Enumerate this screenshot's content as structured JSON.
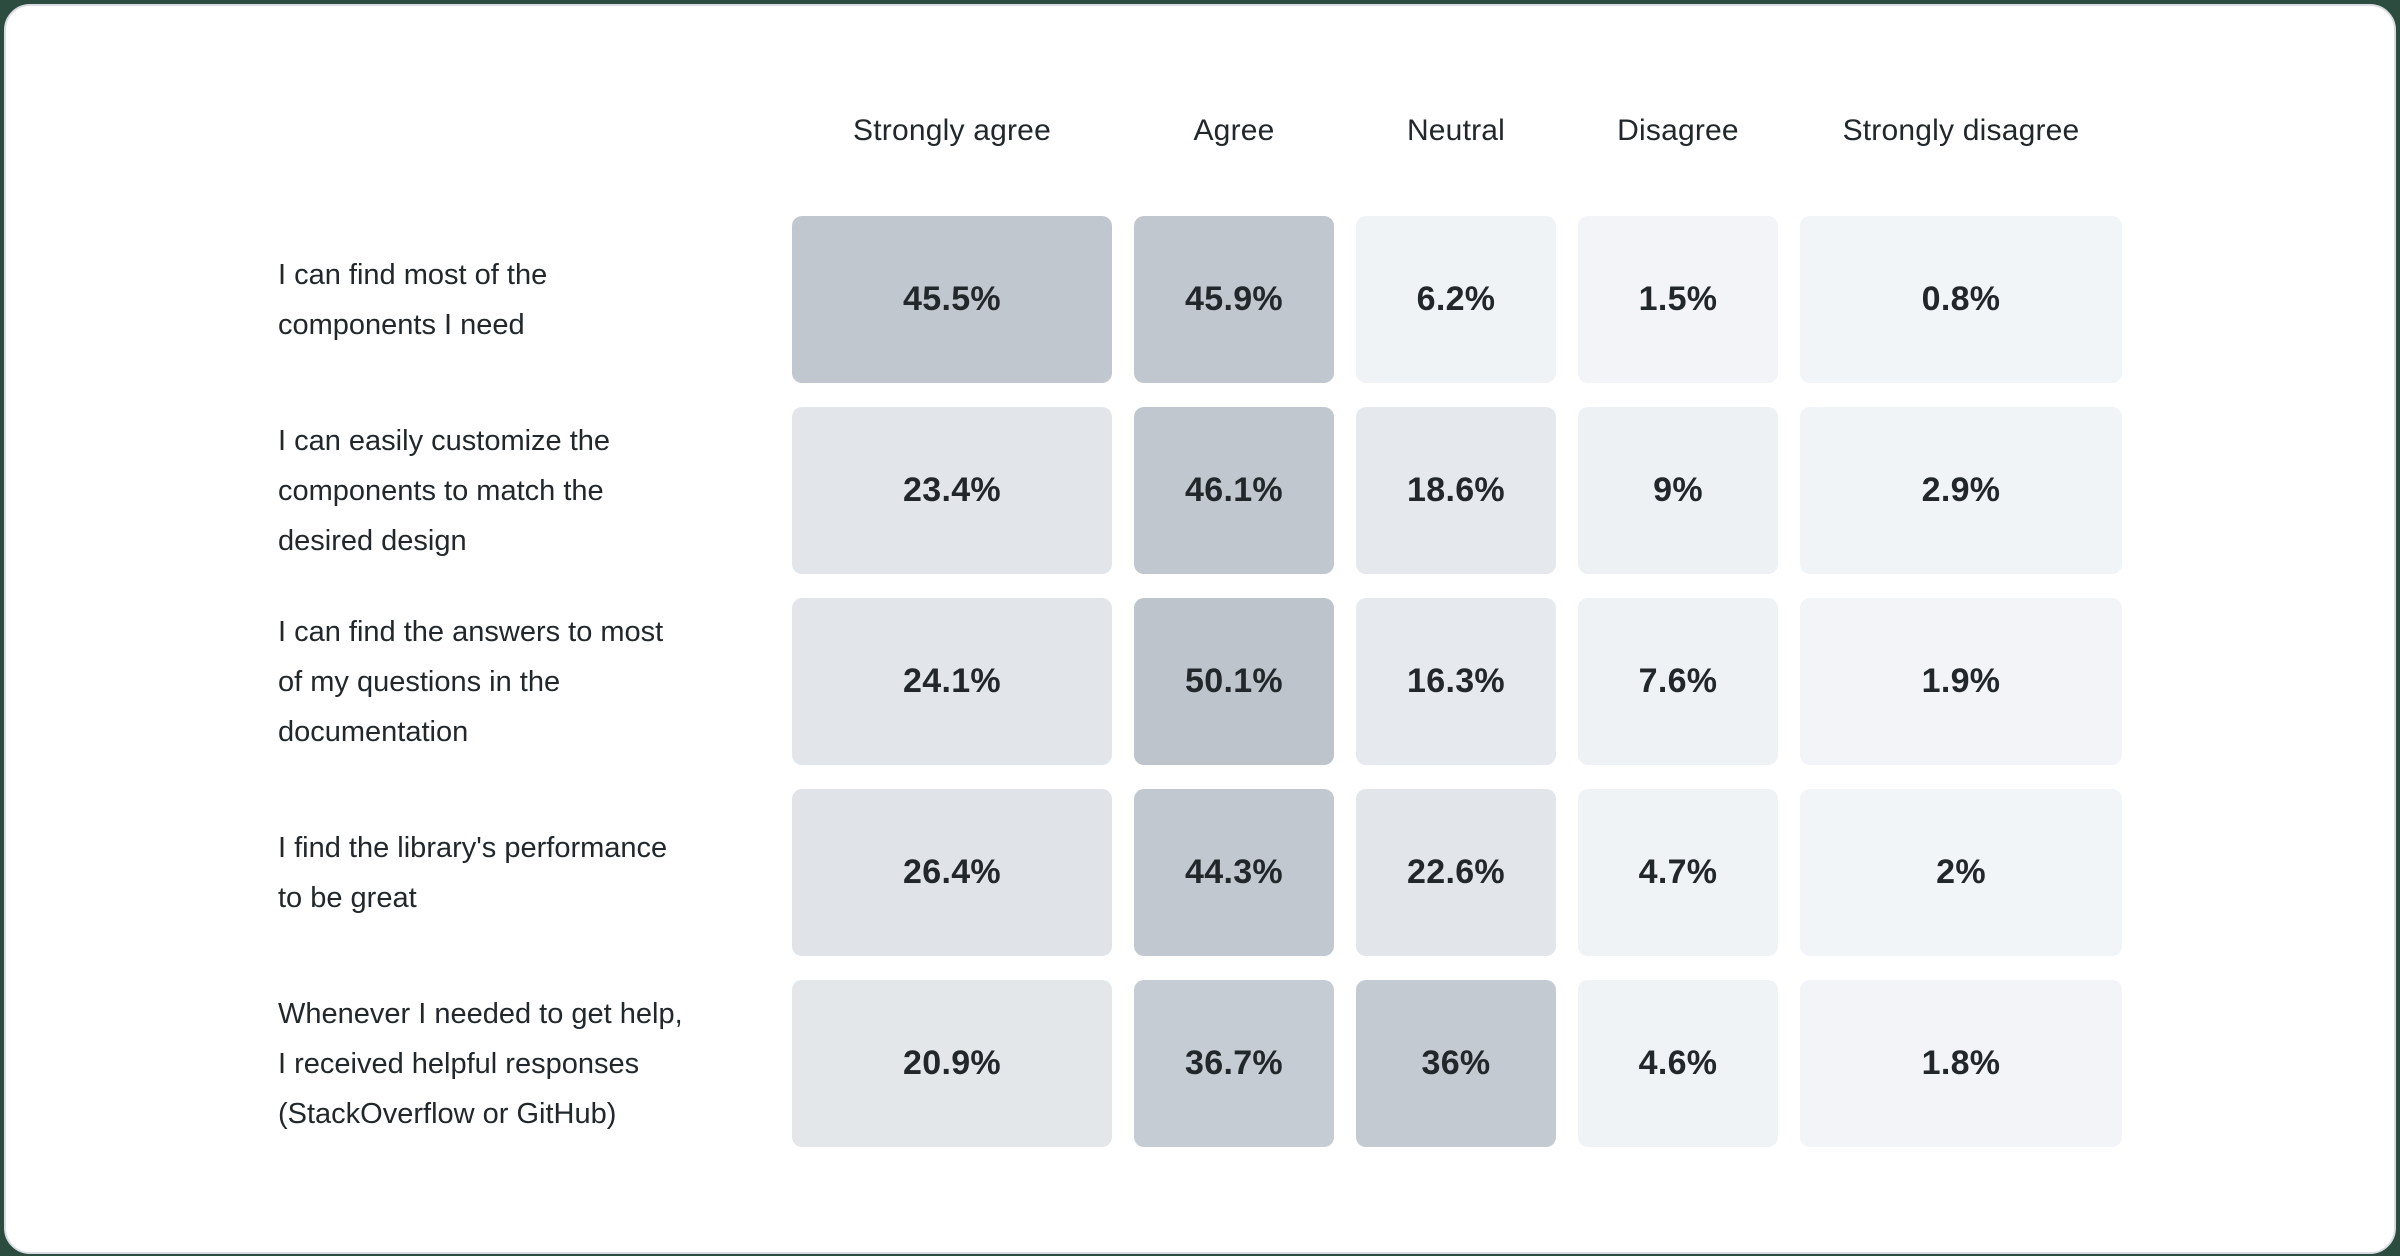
{
  "page": {
    "background_color": "#2b4c3f",
    "card_background": "#ffffff",
    "card_border_color": "#d9dde2",
    "text_color": "#21272a"
  },
  "chart_data": {
    "type": "heatmap",
    "legend_position": "none",
    "value_unit": "percent",
    "columns": [
      "Strongly agree",
      "Agree",
      "Neutral",
      "Disagree",
      "Strongly disagree"
    ],
    "rows": [
      {
        "question": "I can find most of the\ncomponents I need",
        "values": [
          45.5,
          45.9,
          6.2,
          1.5,
          0.8
        ],
        "labels": [
          "45.5%",
          "45.9%",
          "6.2%",
          "1.5%",
          "0.8%"
        ],
        "colors": [
          "#c1c7ce",
          "#c0c7ce",
          "#f0f3f6",
          "#f2f4f7",
          "#f2f5f8"
        ]
      },
      {
        "question": "I can easily customize the\ncomponents to match the\ndesired design",
        "values": [
          23.4,
          46.1,
          18.6,
          9,
          2.9
        ],
        "labels": [
          "23.4%",
          "46.1%",
          "18.6%",
          "9%",
          "2.9%"
        ],
        "colors": [
          "#e2e6ea",
          "#c0c7ce",
          "#e5e8ec",
          "#eef1f4",
          "#f1f4f7"
        ]
      },
      {
        "question": "I can find the answers to most\nof my questions in the\ndocumentation",
        "values": [
          24.1,
          50.1,
          16.3,
          7.6,
          1.9
        ],
        "labels": [
          "24.1%",
          "50.1%",
          "16.3%",
          "7.6%",
          "1.9%"
        ],
        "colors": [
          "#e2e6ea",
          "#bdc4cc",
          "#e6e9ed",
          "#eff2f5",
          "#f2f4f7"
        ]
      },
      {
        "question": "I find the library's performance\nto be great",
        "values": [
          26.4,
          44.3,
          22.6,
          4.7,
          2
        ],
        "labels": [
          "26.4%",
          "44.3%",
          "22.6%",
          "4.7%",
          "2%"
        ],
        "colors": [
          "#e0e4e9",
          "#c1c8cf",
          "#e2e6ea",
          "#f0f3f6",
          "#f2f5f8"
        ]
      },
      {
        "question": "Whenever I needed to get help,\nI received helpful responses\n(StackOverflow or GitHub)",
        "values": [
          20.9,
          36.7,
          36,
          4.6,
          1.8
        ],
        "labels": [
          "20.9%",
          "36.7%",
          "36%",
          "4.6%",
          "1.8%"
        ],
        "colors": [
          "#e3e7ea",
          "#c6ccd3",
          "#c4cad1",
          "#f0f3f6",
          "#f2f4f7"
        ]
      }
    ]
  }
}
